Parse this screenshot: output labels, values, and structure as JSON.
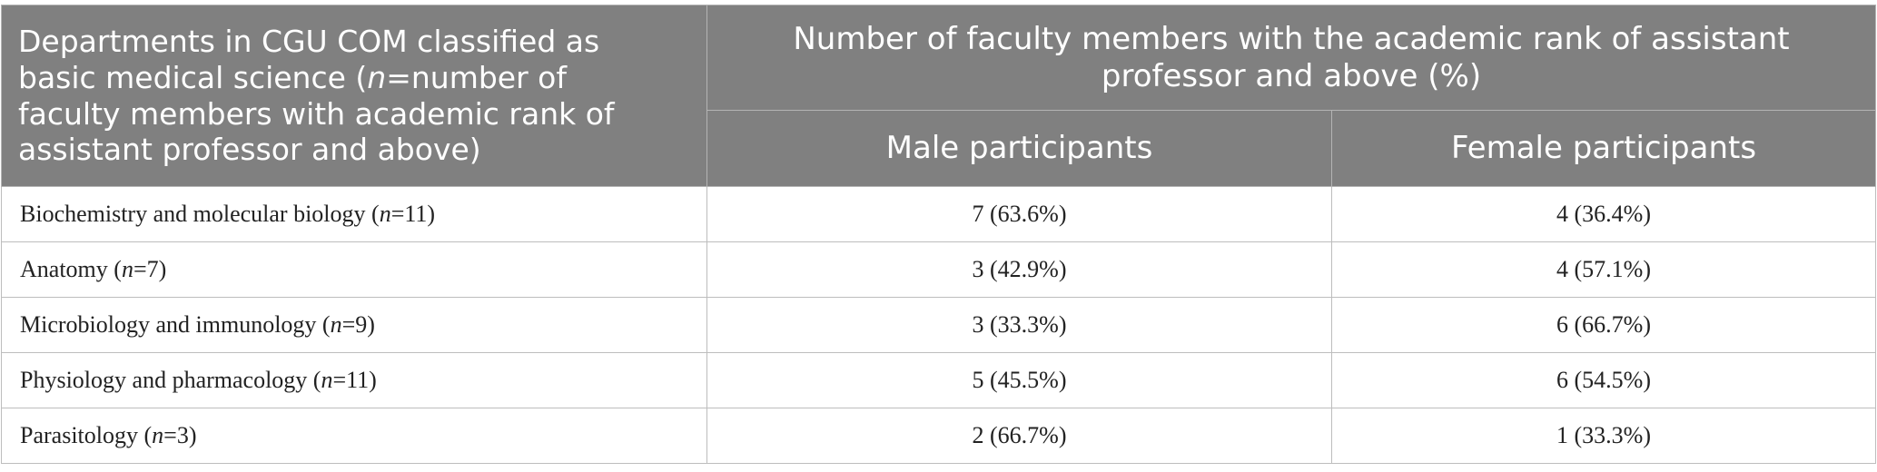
{
  "table": {
    "header": {
      "department_col": {
        "pre": "Departments in CGU COM classified as basic medical science (",
        "n": "n",
        "post": "=number of faculty members with academic rank of assistant professor and above)"
      },
      "group_col": "Number of faculty members with the academic rank of assistant professor and above (%)",
      "male_col": "Male participants",
      "female_col": "Female participants"
    },
    "rows": [
      {
        "name": "Biochemistry and molecular biology",
        "n": "n",
        "count": "=11",
        "male": "7 (63.6%)",
        "female": "4 (36.4%)"
      },
      {
        "name": "Anatomy",
        "n": "n",
        "count": "=7",
        "male": "3 (42.9%)",
        "female": "4 (57.1%)"
      },
      {
        "name": "Microbiology and immunology",
        "n": "n",
        "count": "=9",
        "male": "3 (33.3%)",
        "female": "6 (66.7%)"
      },
      {
        "name": "Physiology and pharmacology",
        "n": "n",
        "count": "=11",
        "male": "5 (45.5%)",
        "female": "6 (54.5%)"
      },
      {
        "name": "Parasitology",
        "n": "n",
        "count": "=3",
        "male": "2 (66.7%)",
        "female": "1 (33.3%)"
      }
    ]
  }
}
